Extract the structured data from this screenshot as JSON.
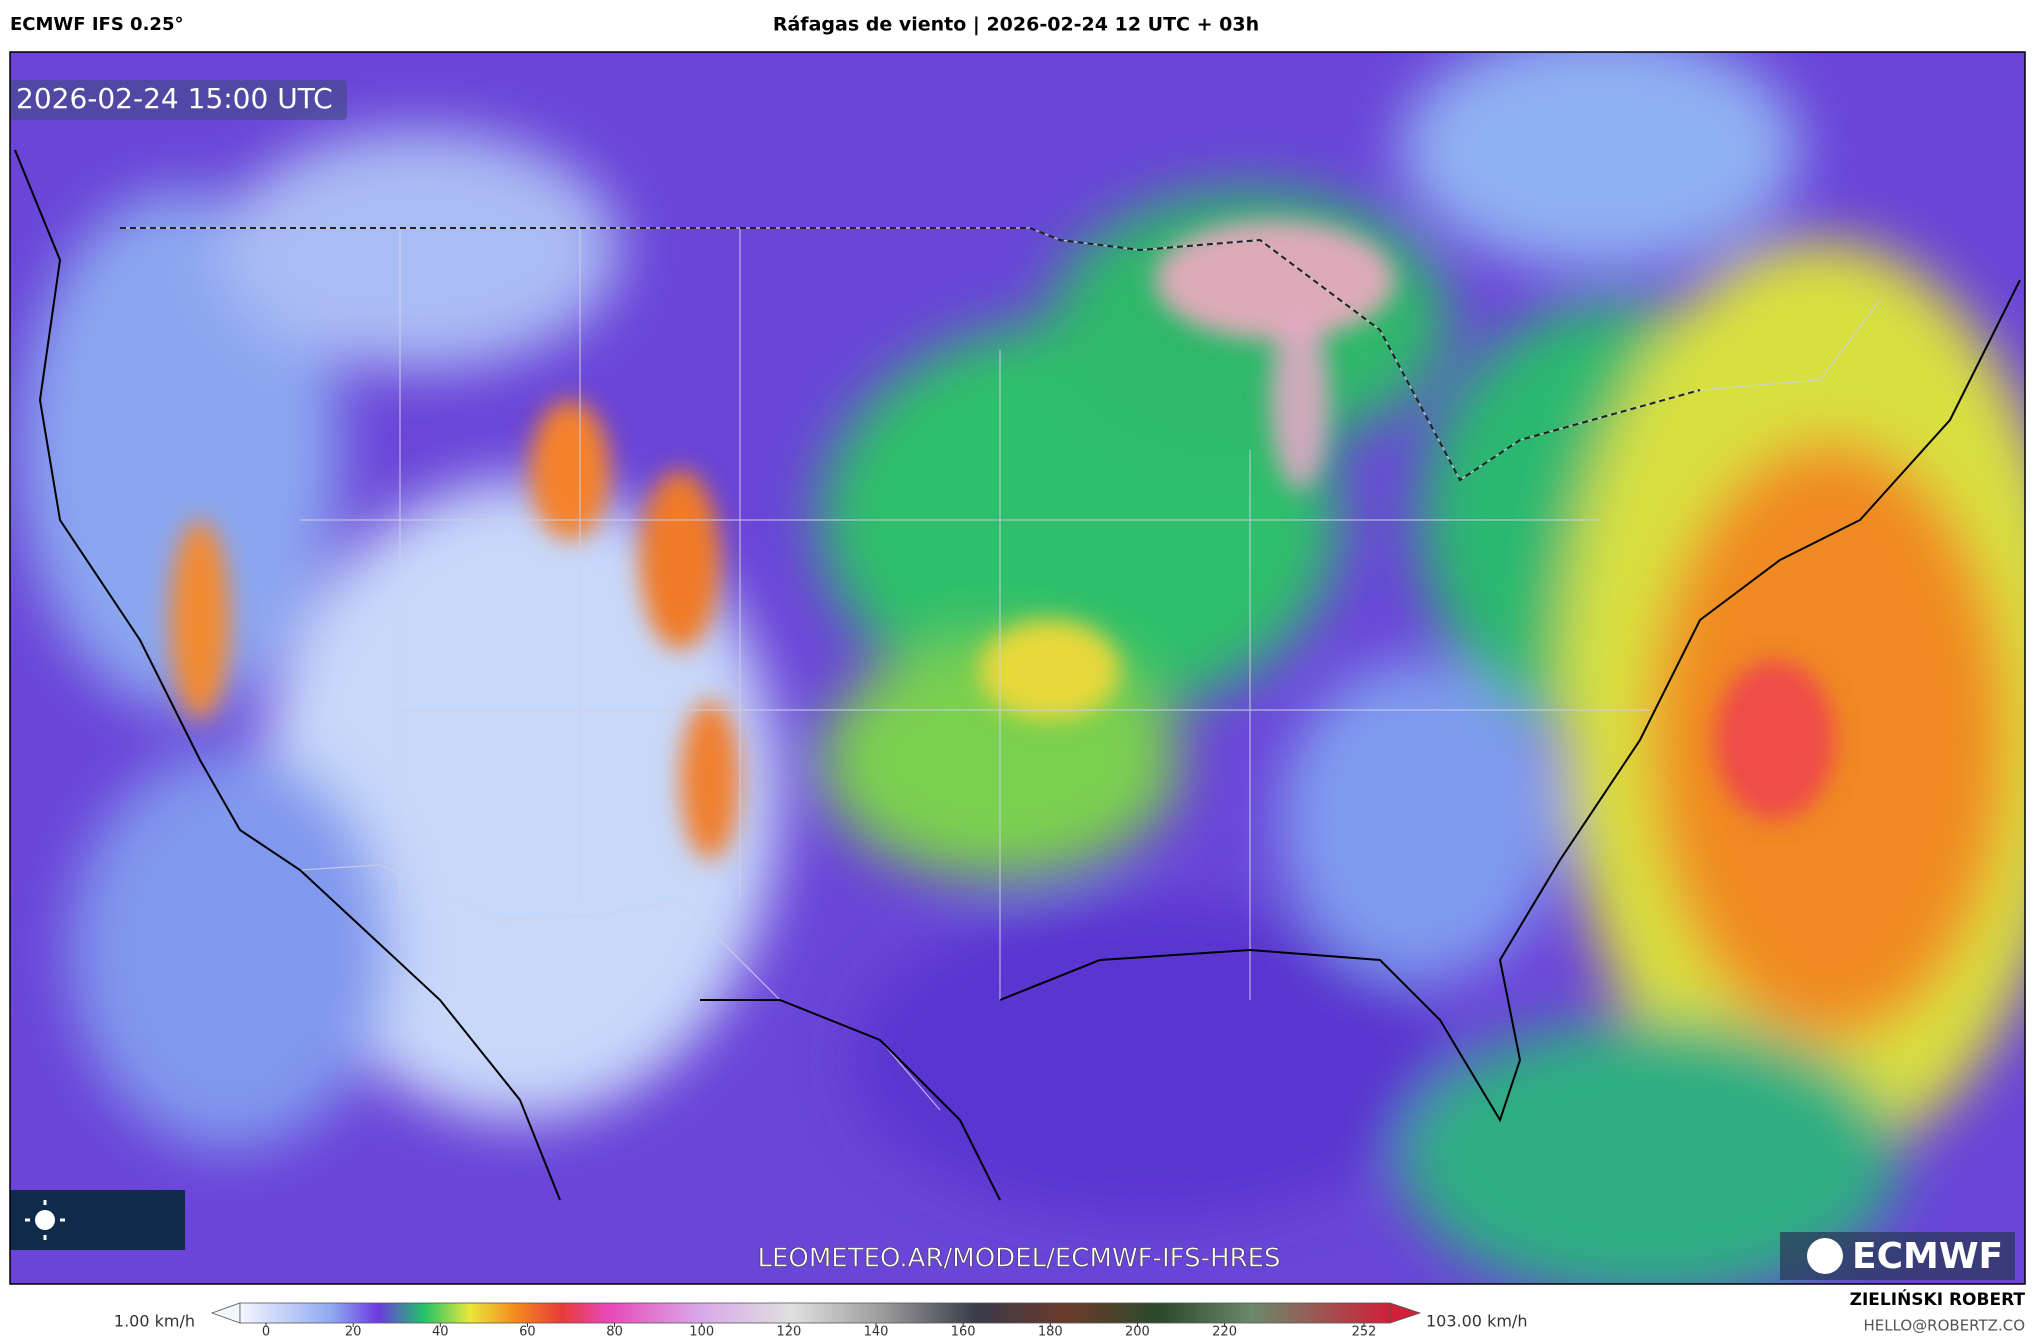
{
  "header": {
    "model": "ECMWF IFS 0.25°",
    "title": "Ráfagas de viento | 2026-02-24 12 UTC + 03h"
  },
  "map": {
    "timestamp": "2026-02-24 15:00 UTC",
    "watermark": "LEOMETEO.AR/MODEL/ECMWF-IFS-HRES",
    "logo": "ECMWF"
  },
  "colorbar": {
    "min_label": "1.00 km/h",
    "max_label": "103.00 km/h",
    "ticks": [
      0,
      20,
      40,
      60,
      80,
      100,
      120,
      140,
      160,
      180,
      200,
      220,
      252
    ]
  },
  "footer": {
    "author": "ZIELIŃSKI ROBERT",
    "contact": "HELLO@ROBERTZ.CO"
  }
}
